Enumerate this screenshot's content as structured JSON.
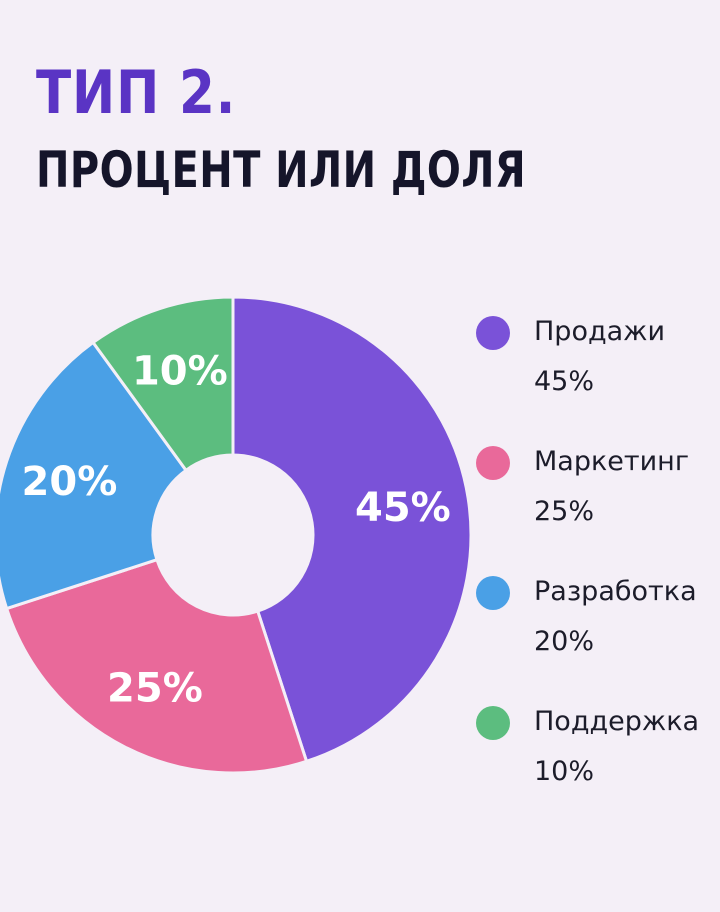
{
  "title": {
    "line1": "ТИП 2.",
    "line2": "ПРОЦЕНТ ИЛИ ДОЛЯ"
  },
  "chart_data": {
    "type": "pie",
    "title": "ТИП 2. ПРОЦЕНТ ИЛИ ДОЛЯ",
    "donut": true,
    "legend_position": "right",
    "unit": "%",
    "categories": [
      "Продажи",
      "Маркетинг",
      "Разработка",
      "Поддержка"
    ],
    "values": [
      45,
      25,
      20,
      10
    ],
    "value_labels": [
      "45%",
      "25%",
      "20%",
      "10%"
    ],
    "colors": [
      "#7a52d8",
      "#e9699a",
      "#4aa0e6",
      "#5cbd7f"
    ]
  }
}
